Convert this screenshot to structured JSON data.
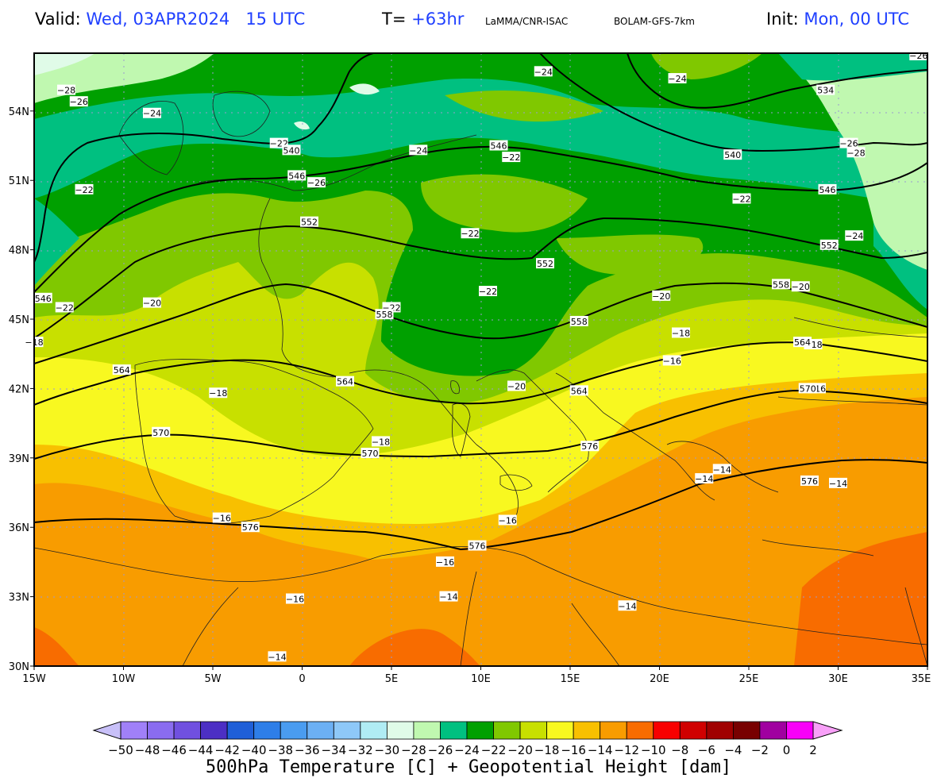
{
  "header": {
    "valid_label": "Valid:",
    "valid_value": "Wed, 03APR2024   15 UTC",
    "t_label": "T=",
    "t_value": "+63hr",
    "source": "LaMMA/CNR-ISAC",
    "model": "BOLAM-GFS-7km",
    "init_label": "Init:",
    "init_value": "Mon, 00 UTC"
  },
  "map": {
    "lon_range": [
      -15,
      35
    ],
    "lat_range": [
      30,
      56.5
    ],
    "lat_ticks": [
      "54N",
      "51N",
      "48N",
      "45N",
      "42N",
      "39N",
      "36N",
      "33N",
      "30N"
    ],
    "lon_ticks": [
      "15W",
      "10W",
      "5W",
      "0",
      "5E",
      "10E",
      "15E",
      "20E",
      "25E",
      "30E",
      "35E"
    ],
    "temperature_labels": [
      {
        "text": "-28",
        "lon": -13.2,
        "lat": 54.9
      },
      {
        "text": "-26",
        "lon": -12.5,
        "lat": 54.4
      },
      {
        "text": "-24",
        "lon": -8.4,
        "lat": 53.9
      },
      {
        "text": "-22",
        "lon": -12.2,
        "lat": 50.6
      },
      {
        "text": "-22",
        "lon": -1.3,
        "lat": 52.6
      },
      {
        "text": "-26",
        "lon": 0.8,
        "lat": 50.9
      },
      {
        "text": "-24",
        "lon": 6.5,
        "lat": 52.3
      },
      {
        "text": "-24",
        "lon": 13.5,
        "lat": 55.7
      },
      {
        "text": "-24",
        "lon": 21.0,
        "lat": 55.4
      },
      {
        "text": "-22",
        "lon": 11.7,
        "lat": 52.0
      },
      {
        "text": "-22",
        "lon": 24.6,
        "lat": 50.2
      },
      {
        "text": "-22",
        "lon": 9.4,
        "lat": 48.7
      },
      {
        "text": "-22",
        "lon": -13.3,
        "lat": 45.5
      },
      {
        "text": "-22",
        "lon": 5.0,
        "lat": 45.5
      },
      {
        "text": "-22",
        "lon": 10.4,
        "lat": 46.2
      },
      {
        "text": "-20",
        "lon": -8.4,
        "lat": 45.7
      },
      {
        "text": "-20",
        "lon": 20.1,
        "lat": 46.0
      },
      {
        "text": "-20",
        "lon": 27.9,
        "lat": 46.4
      },
      {
        "text": "-24",
        "lon": 30.9,
        "lat": 48.6
      },
      {
        "text": "-26",
        "lon": 30.6,
        "lat": 52.6
      },
      {
        "text": "-28",
        "lon": 31.0,
        "lat": 52.2
      },
      {
        "text": "-26",
        "lon": 34.5,
        "lat": 56.4
      },
      {
        "text": "-18",
        "lon": 21.2,
        "lat": 44.4
      },
      {
        "text": "-18",
        "lon": -15.0,
        "lat": 44.0
      },
      {
        "text": "-18",
        "lon": -4.7,
        "lat": 41.8
      },
      {
        "text": "-18",
        "lon": 4.4,
        "lat": 39.7
      },
      {
        "text": "-18",
        "lon": 28.6,
        "lat": 43.9
      },
      {
        "text": "-16",
        "lon": 20.7,
        "lat": 43.2
      },
      {
        "text": "-16",
        "lon": 28.8,
        "lat": 42.0
      },
      {
        "text": "-16",
        "lon": -4.5,
        "lat": 36.4
      },
      {
        "text": "-16",
        "lon": 11.5,
        "lat": 36.3
      },
      {
        "text": "-16",
        "lon": 8.0,
        "lat": 34.5
      },
      {
        "text": "-16",
        "lon": -0.4,
        "lat": 32.9
      },
      {
        "text": "-14",
        "lon": 8.2,
        "lat": 33.0
      },
      {
        "text": "-14",
        "lon": 18.2,
        "lat": 32.6
      },
      {
        "text": "-14",
        "lon": -1.4,
        "lat": 30.4
      },
      {
        "text": "-14",
        "lon": 23.5,
        "lat": 38.5
      },
      {
        "text": "-14",
        "lon": 22.5,
        "lat": 38.1
      },
      {
        "text": "-14",
        "lon": 30.0,
        "lat": 37.9
      },
      {
        "text": "-20",
        "lon": 12.0,
        "lat": 42.1
      }
    ],
    "height_labels": [
      {
        "text": "534",
        "lon": 29.3,
        "lat": 54.9
      },
      {
        "text": "540",
        "lon": -0.6,
        "lat": 52.3
      },
      {
        "text": "540",
        "lon": 24.1,
        "lat": 52.1
      },
      {
        "text": "546",
        "lon": -0.3,
        "lat": 51.2
      },
      {
        "text": "546",
        "lon": 11.0,
        "lat": 52.5
      },
      {
        "text": "546",
        "lon": 29.4,
        "lat": 50.6
      },
      {
        "text": "546",
        "lon": -14.5,
        "lat": 45.9
      },
      {
        "text": "552",
        "lon": 0.4,
        "lat": 49.2
      },
      {
        "text": "552",
        "lon": 13.6,
        "lat": 47.4
      },
      {
        "text": "552",
        "lon": 29.5,
        "lat": 48.2
      },
      {
        "text": "558",
        "lon": 4.6,
        "lat": 45.2
      },
      {
        "text": "558",
        "lon": 15.5,
        "lat": 44.9
      },
      {
        "text": "558",
        "lon": 26.8,
        "lat": 46.5
      },
      {
        "text": "564",
        "lon": -10.1,
        "lat": 42.8
      },
      {
        "text": "564",
        "lon": 2.4,
        "lat": 42.3
      },
      {
        "text": "564",
        "lon": 15.5,
        "lat": 41.9
      },
      {
        "text": "564",
        "lon": 28.0,
        "lat": 44.0
      },
      {
        "text": "570",
        "lon": -7.9,
        "lat": 40.1
      },
      {
        "text": "570",
        "lon": 3.8,
        "lat": 39.2
      },
      {
        "text": "570",
        "lon": 28.3,
        "lat": 42.0
      },
      {
        "text": "576",
        "lon": 16.1,
        "lat": 39.5
      },
      {
        "text": "576",
        "lon": -2.9,
        "lat": 36.0
      },
      {
        "text": "576",
        "lon": 9.8,
        "lat": 35.2
      },
      {
        "text": "576",
        "lon": 28.4,
        "lat": 38.0
      }
    ]
  },
  "colorbar": {
    "ticks": [
      "-50",
      "-48",
      "-46",
      "-44",
      "-42",
      "-40",
      "-38",
      "-36",
      "-34",
      "-32",
      "-30",
      "-28",
      "-26",
      "-24",
      "-22",
      "-20",
      "-18",
      "-16",
      "-14",
      "-12",
      "-10",
      "-8",
      "-6",
      "-4",
      "-2",
      "0",
      "2"
    ],
    "colors": [
      "#a080f8",
      "#8a6cf0",
      "#7050e0",
      "#4c2fc4",
      "#1f5fd8",
      "#2e7ee8",
      "#4a9cf0",
      "#6cb0f4",
      "#8ec8f8",
      "#b0ecf4",
      "#e0fbe8",
      "#c0f8b0",
      "#00c080",
      "#00a000",
      "#80c800",
      "#c8e000",
      "#f8f820",
      "#f8c000",
      "#f89c00",
      "#f86c00",
      "#f80000",
      "#d00000",
      "#a00000",
      "#780000",
      "#a000a0",
      "#f800f8"
    ],
    "under_color": "#c8c0f8",
    "over_color": "#f8a0f8",
    "title": "500hPa Temperature [C] + Geopotential Height [dam]"
  }
}
